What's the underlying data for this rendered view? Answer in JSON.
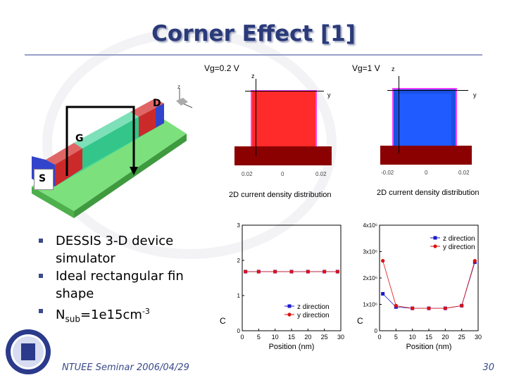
{
  "slide": {
    "title": "Corner Effect [1]",
    "footer": "NTUEE Seminar 2006/04/29",
    "page_number": "30"
  },
  "device": {
    "drain_label": "D",
    "gate_label": "G",
    "source_label": "S",
    "axis_z": "z"
  },
  "density_maps": [
    {
      "vg": "Vg=0.2 V",
      "axis_z": "z",
      "axis_y": "y",
      "ticks": [
        "0.02",
        "0",
        "0.02"
      ],
      "caption": "2D current density distribution",
      "color": "#ff2a2a"
    },
    {
      "vg": "Vg=1 V",
      "axis_z": "z",
      "axis_y": "y",
      "ticks": [
        "-0.02",
        "0",
        "0.02"
      ],
      "caption": "2D current density distribution",
      "color": "#1f5bff"
    }
  ],
  "bullets": [
    {
      "main": "DESSIS 3-D device simulator"
    },
    {
      "main": "Ideal rectangular fin shape"
    },
    {
      "main": "N",
      "sub": "sub",
      "tail": "=1e15cm",
      "sup": "-3"
    }
  ],
  "chart_data": [
    {
      "type": "line",
      "xlabel": "Position (nm)",
      "ylabel": "C",
      "xlim": [
        0,
        30
      ],
      "ylim": [
        0,
        3
      ],
      "xticks": [
        "0",
        "5",
        "10",
        "15",
        "20",
        "25",
        "30"
      ],
      "yticks": [
        "0",
        "1",
        "2",
        "3"
      ],
      "series": [
        {
          "name": "z direction",
          "color": "#1a1acc",
          "marker": "square",
          "x": [
            1,
            5,
            10,
            15,
            20,
            25,
            29
          ],
          "y": [
            1.68,
            1.68,
            1.68,
            1.68,
            1.68,
            1.68,
            1.68
          ]
        },
        {
          "name": "y direction",
          "color": "#dd1111",
          "marker": "circle",
          "x": [
            1,
            5,
            10,
            15,
            20,
            25,
            29
          ],
          "y": [
            1.68,
            1.68,
            1.68,
            1.68,
            1.68,
            1.68,
            1.68
          ]
        }
      ],
      "legend": "bottom-right"
    },
    {
      "type": "line",
      "xlabel": "Position (nm)",
      "ylabel": "C",
      "xlim": [
        0,
        30
      ],
      "ylim": [
        0,
        4000000.0
      ],
      "xticks": [
        "0",
        "5",
        "10",
        "15",
        "20",
        "25",
        "30"
      ],
      "yticks": [
        "0",
        "1x10⁶",
        "2x10⁶",
        "3x10⁶",
        "4x10⁶"
      ],
      "series": [
        {
          "name": "z direction",
          "color": "#1a1acc",
          "marker": "square",
          "x": [
            1,
            5,
            10,
            15,
            20,
            25,
            29
          ],
          "y": [
            1400000.0,
            900000.0,
            850000.0,
            850000.0,
            850000.0,
            950000.0,
            2600000.0
          ]
        },
        {
          "name": "y direction",
          "color": "#dd1111",
          "marker": "circle",
          "x": [
            1,
            5,
            10,
            15,
            20,
            25,
            29
          ],
          "y": [
            2650000.0,
            950000.0,
            850000.0,
            850000.0,
            850000.0,
            950000.0,
            2650000.0
          ]
        }
      ],
      "legend": "top-right"
    }
  ]
}
